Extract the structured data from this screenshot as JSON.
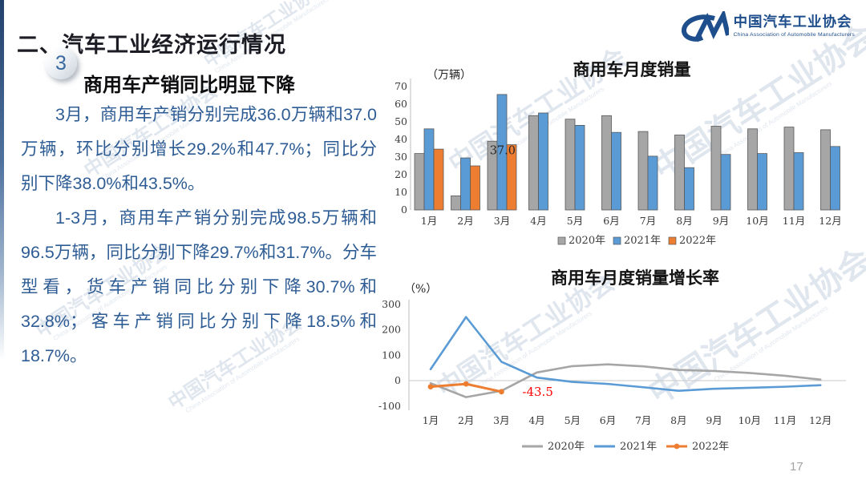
{
  "slide": {
    "title": "二、汽车工业经济运行情况",
    "badge_number": "3",
    "subtitle": "商用车产销同比明显下降",
    "paragraphs": [
      "3月，商用车产销分别完成36.0万辆和37.0万辆，环比分别增长29.2%和47.7%；同比分别下降38.0%和43.5%。",
      "1-3月，商用车产销分别完成98.5万辆和96.5万辆，同比分别下降29.7%和31.7%。分车型看，货车产销同比分别下降30.7%和32.8%；客车产销同比分别下降18.5%和18.7%。"
    ],
    "page_number": "17",
    "watermark": "中国汽车工业协会",
    "watermark_sub": "China Association of Automobile Manufacturers",
    "colors": {
      "body_text": "#2e5c94",
      "title_text": "#1c1c24",
      "accent_bar_top": "#22416b",
      "badge_digit": "#38699f"
    }
  },
  "logo": {
    "name_cn": "中国汽车工业协会",
    "name_en": "China Association of Automobile Manufacturers",
    "color": "#1f4e8c"
  },
  "chart_data": [
    {
      "type": "bar",
      "title": "商用车月度销量",
      "unit_label": "（万辆）",
      "categories": [
        "1月",
        "2月",
        "3月",
        "4月",
        "5月",
        "6月",
        "7月",
        "8月",
        "9月",
        "10月",
        "11月",
        "12月"
      ],
      "series": [
        {
          "name": "2020年",
          "color": "#a6a6a6",
          "values": [
            32,
            8,
            39,
            53.5,
            51.5,
            53.5,
            44.5,
            42.5,
            47.5,
            46,
            47,
            45.5
          ]
        },
        {
          "name": "2021年",
          "color": "#5b9bd5",
          "values": [
            46,
            29.5,
            65.5,
            55,
            48,
            44,
            30.5,
            24,
            31.5,
            32,
            32.5,
            36
          ]
        },
        {
          "name": "2022年",
          "color": "#ed7d31",
          "values": [
            34.5,
            25,
            37,
            null,
            null,
            null,
            null,
            null,
            null,
            null,
            null,
            null
          ]
        }
      ],
      "ylim": [
        0,
        70
      ],
      "ytick_step": 10,
      "grid": false,
      "legend_position": "bottom",
      "annotation": {
        "text": "37.0",
        "series": "2022年",
        "month_index": 2,
        "value": 37.0,
        "color": "#262626"
      }
    },
    {
      "type": "line",
      "title": "商用车月度销量增长率",
      "unit_label": "（%）",
      "categories": [
        "1月",
        "2月",
        "3月",
        "4月",
        "5月",
        "6月",
        "7月",
        "8月",
        "9月",
        "10月",
        "11月",
        "12月"
      ],
      "series": [
        {
          "name": "2020年",
          "color": "#a6a6a6",
          "markers": false,
          "values": [
            -10,
            -65,
            -40,
            32,
            57,
            64,
            56,
            42,
            38,
            30,
            19,
            4
          ]
        },
        {
          "name": "2021年",
          "color": "#5b9bd5",
          "markers": false,
          "values": [
            45,
            250,
            74,
            12,
            -5,
            -13,
            -26,
            -40,
            -32,
            -28,
            -24,
            -18
          ]
        },
        {
          "name": "2022年",
          "color": "#ed7d31",
          "markers": true,
          "values": [
            -24,
            -13,
            -43.5,
            null,
            null,
            null,
            null,
            null,
            null,
            null,
            null,
            null
          ]
        }
      ],
      "ylim": [
        -100,
        300
      ],
      "ytick_step": 100,
      "grid": false,
      "zero_line": true,
      "legend_position": "bottom",
      "annotation": {
        "text": "-43.5",
        "series": "2022年",
        "month_index": 2,
        "value": -43.5,
        "color": "#ff0000"
      }
    }
  ]
}
